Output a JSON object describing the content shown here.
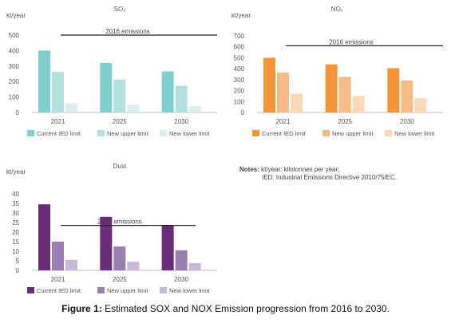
{
  "chart_data": [
    {
      "type": "bar",
      "title": "SO₂",
      "ylabel": "kt/year",
      "categories": [
        "2021",
        "2025",
        "2030"
      ],
      "ylim": [
        0,
        500
      ],
      "yticks": [
        0,
        100,
        200,
        300,
        400,
        500
      ],
      "series": [
        {
          "name": "Current IED limit",
          "values": [
            400,
            320,
            265
          ],
          "color": "#7fcfcc"
        },
        {
          "name": "New upper limit",
          "values": [
            262,
            213,
            172
          ],
          "color": "#b3e1de"
        },
        {
          "name": "New lower limit",
          "values": [
            60,
            50,
            42
          ],
          "color": "#d9efed"
        }
      ],
      "reference_line": {
        "label": "2016 emissions",
        "value": 500
      },
      "legend": "bottom"
    },
    {
      "type": "bar",
      "title": "NOₓ",
      "ylabel": "kt/year",
      "categories": [
        "2021",
        "2025",
        "2030"
      ],
      "ylim": [
        0,
        700
      ],
      "yticks": [
        0,
        100,
        200,
        300,
        400,
        500,
        600,
        700
      ],
      "series": [
        {
          "name": "Current IED limit",
          "values": [
            500,
            440,
            405
          ],
          "color": "#f4953a"
        },
        {
          "name": "New upper limit",
          "values": [
            365,
            325,
            292
          ],
          "color": "#f7bc86"
        },
        {
          "name": "New lower limit",
          "values": [
            172,
            150,
            130
          ],
          "color": "#fbd9b8"
        }
      ],
      "reference_line": {
        "label": "2016 emissions",
        "value": 610
      },
      "legend": "bottom"
    },
    {
      "type": "bar",
      "title": "Dust",
      "ylabel": "kt/year",
      "categories": [
        "2021",
        "2025",
        "2030"
      ],
      "ylim": [
        0,
        40
      ],
      "yticks": [
        0,
        5,
        10,
        15,
        20,
        25,
        30,
        35,
        40
      ],
      "series": [
        {
          "name": "Current IED limit",
          "values": [
            34.5,
            28,
            23.5
          ],
          "color": "#6b2d7a"
        },
        {
          "name": "New upper limit",
          "values": [
            15,
            12.5,
            10.5
          ],
          "color": "#9a7fb0"
        },
        {
          "name": "New lower limit",
          "values": [
            5.5,
            4.5,
            3.8
          ],
          "color": "#c9b8d6"
        }
      ],
      "reference_line": {
        "label": "2016 emissions",
        "value": 23.5
      },
      "legend": "bottom"
    }
  ],
  "notes": {
    "label": "Notes:",
    "line1": "kt/year: kilotonnes per year;",
    "line2": "IED: Industrial Emissions Directive 2010/75/EC."
  },
  "caption": {
    "label": "Figure 1:",
    "text": "Estimated SOX and NOX Emission progression from 2016 to 2030."
  }
}
